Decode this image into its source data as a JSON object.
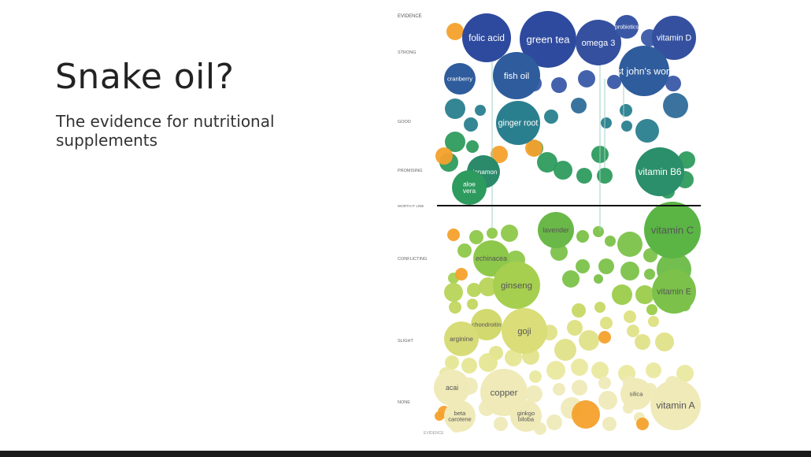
{
  "slide": {
    "title": "Snake oil?",
    "subtitle": "The evidence for nutritional supplements"
  },
  "chart_data": {
    "type": "bubble",
    "title": "",
    "xlabel": "",
    "ylabel": "EVIDENCE",
    "axis_top_label": "EVIDENCE",
    "axis_bottom_label": "EVIDENCE",
    "levels": [
      "STRONG",
      "GOOD",
      "PROMISING",
      "CONFLICTING",
      "SLIGHT",
      "NONE"
    ],
    "threshold_label": "WORTH IT LINE",
    "grid": false,
    "legend": "none",
    "colors": {
      "strong": "#2e4a9e",
      "good": "#2a7f8f",
      "promising": "#2e9b5e",
      "conflicting": "#7cc24a",
      "slight": "#d8dc7a",
      "none": "#efeab8",
      "highlight": "#f4a12c",
      "threshold_line": "#111111"
    },
    "bubbles": [
      {
        "label": "folic acid",
        "size": 62,
        "level": "STRONG"
      },
      {
        "label": "green tea",
        "size": 72,
        "level": "STRONG"
      },
      {
        "label": "omega 3",
        "size": 58,
        "level": "STRONG"
      },
      {
        "label": "vitamin D",
        "size": 56,
        "level": "STRONG"
      },
      {
        "label": "probiotics",
        "size": 30,
        "level": "STRONG"
      },
      {
        "label": "fish oil",
        "size": 60,
        "level": "STRONG"
      },
      {
        "label": "cranberry",
        "size": 40,
        "level": "STRONG"
      },
      {
        "label": "st john's wort",
        "size": 64,
        "level": "STRONG"
      },
      {
        "label": "ginger root",
        "size": 56,
        "level": "GOOD"
      },
      {
        "label": "cinnamon",
        "size": 42,
        "level": "PROMISING"
      },
      {
        "label": "aloe vera",
        "size": 44,
        "level": "PROMISING"
      },
      {
        "label": "vitamin B6",
        "size": 62,
        "level": "PROMISING"
      },
      {
        "label": "lavender",
        "size": 46,
        "level": "CONFLICTING"
      },
      {
        "label": "vitamin C",
        "size": 72,
        "level": "CONFLICTING"
      },
      {
        "label": "echinacea",
        "size": 46,
        "level": "CONFLICTING"
      },
      {
        "label": "ginseng",
        "size": 60,
        "level": "CONFLICTING"
      },
      {
        "label": "vitamin E",
        "size": 56,
        "level": "CONFLICTING"
      },
      {
        "label": "chondroitin",
        "size": 40,
        "level": "SLIGHT"
      },
      {
        "label": "goji",
        "size": 58,
        "level": "SLIGHT"
      },
      {
        "label": "arginine",
        "size": 44,
        "level": "SLIGHT"
      },
      {
        "label": "acai",
        "size": 46,
        "level": "NONE"
      },
      {
        "label": "copper",
        "size": 60,
        "level": "NONE"
      },
      {
        "label": "silica",
        "size": 40,
        "level": "NONE"
      },
      {
        "label": "vitamin A",
        "size": 64,
        "level": "NONE"
      },
      {
        "label": "beta carotene",
        "size": 40,
        "level": "NONE"
      },
      {
        "label": "ginkgo biloba",
        "size": 40,
        "level": "NONE"
      }
    ]
  }
}
